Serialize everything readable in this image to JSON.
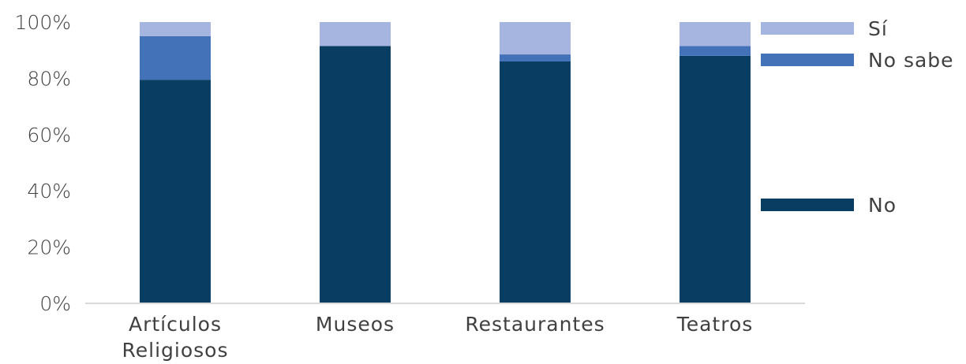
{
  "chart_data": {
    "type": "bar",
    "stacked": true,
    "percent": true,
    "categories": [
      [
        "Artículos",
        "Religiosos"
      ],
      [
        "Museos"
      ],
      [
        "Restaurantes"
      ],
      [
        "Teatros"
      ]
    ],
    "series": [
      {
        "name": "No",
        "values": [
          79.5,
          91.5,
          86,
          88
        ],
        "color": "#0a3d62"
      },
      {
        "name": "No sabe",
        "values": [
          15.5,
          0,
          2.5,
          3.5
        ],
        "color": "#4472b9"
      },
      {
        "name": "Sí",
        "values": [
          5,
          8.5,
          11.5,
          8.5
        ],
        "color": "#a6b4e0"
      }
    ],
    "ylim": [
      0,
      100
    ],
    "yticks": [
      "0%",
      "20%",
      "40%",
      "60%",
      "80%",
      "100%"
    ],
    "legend": "right, labels beside bar tops",
    "axis_color": "#d9d9d9"
  }
}
